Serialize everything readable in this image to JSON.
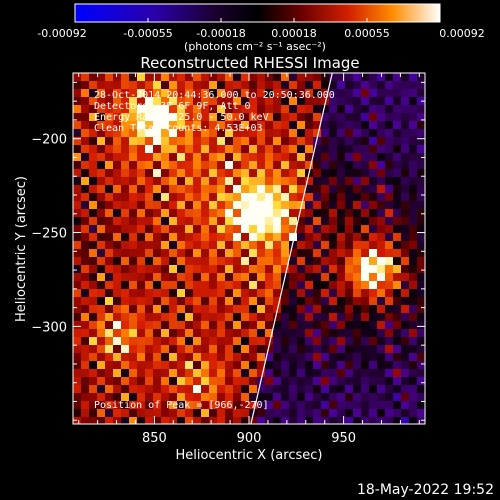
{
  "colorbar": {
    "ticks": [
      "-0.00092",
      "-0.00055",
      "-0.00018",
      "0.00018",
      "0.00055",
      "0.00092"
    ],
    "unit_label": "(photons cm⁻² s⁻¹ asec⁻²)",
    "range": [
      -0.00092,
      0.00092
    ]
  },
  "annotations": {
    "time_range": "28-Oct-2014 20:44:36.000 to 20:50:36.000",
    "detectors": "Detectors: 3F 6F 9F, Att 0",
    "energy": "Energy Range: 25.0 - 50.0 keV",
    "clean": "Clean    Total counts: 4.53E+03",
    "peak": "Position of Peak = [966,-270]"
  },
  "footer": {
    "timestamp": "18-May-2022 19:52"
  },
  "chart_data": {
    "type": "heatmap",
    "title": "Reconstructed RHESSI Image",
    "xlabel": "Heliocentric X (arcsec)",
    "ylabel": "Heliocentric Y (arcsec)",
    "xlim": [
      807,
      993
    ],
    "ylim": [
      -352,
      -165
    ],
    "xticks": [
      850,
      900,
      950
    ],
    "xtick_labels": [
      "850",
      "900",
      "950"
    ],
    "yticks": [
      -200,
      -250,
      -300
    ],
    "ytick_labels": [
      "−200",
      "−250",
      "−300"
    ],
    "limb": [
      [
        901,
        -352
      ],
      [
        944,
        -165
      ]
    ],
    "sources": [
      {
        "x": 966,
        "y": -270,
        "peak": 1.0
      },
      {
        "x": 904,
        "y": -238,
        "peak": 0.85
      },
      {
        "x": 850,
        "y": -190,
        "peak": 0.8
      },
      {
        "x": 830,
        "y": -305,
        "peak": 0.4
      },
      {
        "x": 875,
        "y": -330,
        "peak": 0.35
      }
    ]
  }
}
